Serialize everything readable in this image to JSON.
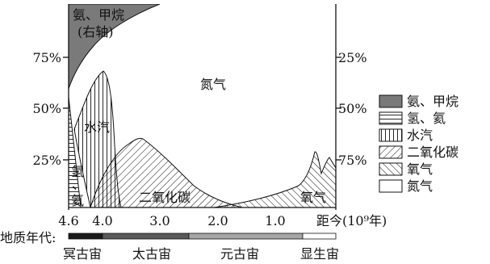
{
  "labels": {
    "ammonia_methane_line1": "氨、甲烷",
    "ammonia_methane_line2": "(右轴)",
    "nitrogen": "氮气",
    "water_vapor": "水汽",
    "co2": "二氧化碳",
    "oxygen": "氧气",
    "hydrogen_helium_line1": "氢",
    "hydrogen_helium_line2": "、",
    "hydrogen_helium_line3": "氦"
  },
  "left_axis": {
    "ticks": [
      "75%",
      "50%",
      "25%"
    ]
  },
  "right_axis": {
    "ticks": [
      "25%",
      "50%",
      "75%"
    ]
  },
  "x_axis": {
    "ticks": [
      "4.6",
      "4.0",
      "3.0",
      "2.0",
      "1.0"
    ],
    "title": "距今(10⁹年)"
  },
  "era_bar": {
    "label": "地质年代:",
    "eons": [
      "冥古宙",
      "太古宙",
      "元古宙",
      "显生宙"
    ],
    "colors": [
      "#1a1a1a",
      "#5a5a5a",
      "#a6a6a6",
      "#ffffff"
    ]
  },
  "legend": [
    {
      "label": "氨、甲烷",
      "pattern": "solid-gray"
    },
    {
      "label": "氢、氦",
      "pattern": "horizontal-lines"
    },
    {
      "label": "水汽",
      "pattern": "vertical-lines"
    },
    {
      "label": "二氧化碳",
      "pattern": "back-diagonal"
    },
    {
      "label": "氧气",
      "pattern": "forward-diagonal"
    },
    {
      "label": "氮气",
      "pattern": "blank"
    }
  ],
  "colors": {
    "ammonia_fill": "#7a7a7a",
    "ink": "#111111"
  }
}
